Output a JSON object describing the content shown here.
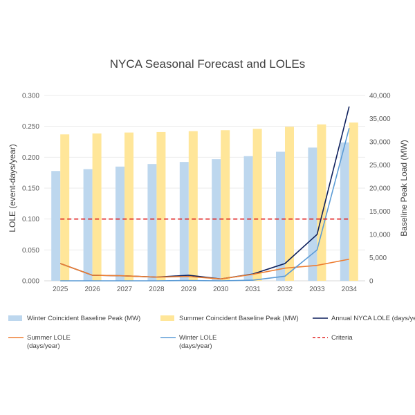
{
  "chart_data": {
    "type": "bar",
    "title": "NYCA Seasonal Forecast and LOLEs",
    "categories": [
      "2025",
      "2026",
      "2027",
      "2028",
      "2029",
      "2030",
      "2031",
      "2032",
      "2033",
      "2034"
    ],
    "ylabel": "LOLE (event-days/year)",
    "y2label": "Baseline Peak Load (MW)",
    "ylim": [
      0,
      0.3
    ],
    "y2lim": [
      0,
      40000
    ],
    "yticks": [
      "0.000",
      "0.050",
      "0.100",
      "0.150",
      "0.200",
      "0.250",
      "0.300"
    ],
    "y2ticks": [
      "0",
      "5,000",
      "10,000",
      "15,000",
      "20,000",
      "25,000",
      "30,000",
      "35,000",
      "40,000"
    ],
    "grid": true,
    "legend_position": "bottom",
    "series": [
      {
        "name": "Winter Coincident Baseline Peak (MW)",
        "kind": "bar",
        "axis": "right",
        "color": "#bdd7ee",
        "values": [
          23700,
          24100,
          24650,
          25200,
          25650,
          26250,
          26900,
          27850,
          28750,
          29850
        ]
      },
      {
        "name": "Summer Coincident Baseline Peak (MW)",
        "kind": "bar",
        "axis": "right",
        "color": "#ffe699",
        "values": [
          31600,
          31800,
          32000,
          32100,
          32300,
          32500,
          32800,
          33250,
          33750,
          34150
        ]
      },
      {
        "name": "Annual NYCA LOLE (days/year)",
        "kind": "line",
        "axis": "left",
        "color": "#0d1f5c",
        "values": [
          0.028,
          0.009,
          0.008,
          0.006,
          0.009,
          0.003,
          0.011,
          0.028,
          0.075,
          0.282
        ]
      },
      {
        "name": "Summer LOLE\n(days/year)",
        "kind": "line",
        "axis": "left",
        "color": "#ed7d31",
        "values": [
          0.028,
          0.009,
          0.008,
          0.006,
          0.007,
          0.003,
          0.0105,
          0.0205,
          0.025,
          0.035
        ]
      },
      {
        "name": "Winter LOLE\n(days/year)",
        "kind": "line",
        "axis": "left",
        "color": "#5b9bd5",
        "values": [
          0.0,
          0.0,
          0.0,
          0.0,
          0.0005,
          0.0,
          0.001,
          0.0075,
          0.05,
          0.247
        ]
      },
      {
        "name": "Criteria",
        "kind": "dashed",
        "axis": "left",
        "color": "#e02020",
        "values": [
          0.1,
          0.1,
          0.1,
          0.1,
          0.1,
          0.1,
          0.1,
          0.1,
          0.1,
          0.1
        ]
      }
    ]
  }
}
